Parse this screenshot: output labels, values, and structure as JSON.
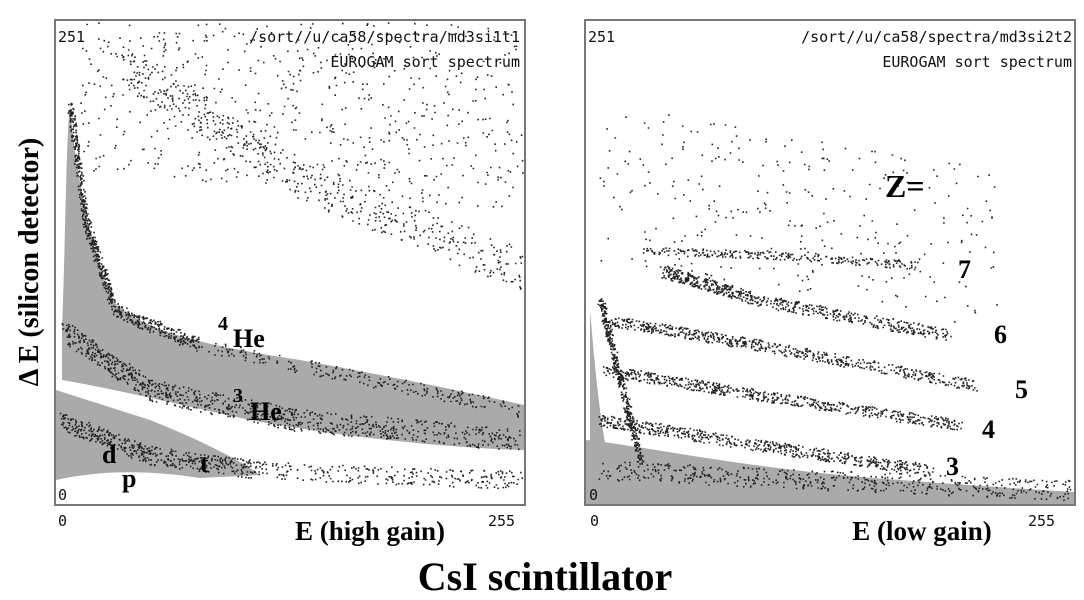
{
  "y_label": "Δ E (silicon detector)",
  "footer": "CsI scintillator",
  "panels": [
    {
      "top_left": "251",
      "path": "/sort//u/ca58/spectra/md3si1t1",
      "subtitle": "EUROGAM sort spectrum",
      "origin": "0",
      "x_start": "0",
      "x_label": "E (high gain)",
      "x_end": "255",
      "annotations": [
        {
          "mass": "4",
          "label": "He"
        },
        {
          "mass": "3",
          "label": "He"
        },
        {
          "label": "d"
        },
        {
          "label": "p"
        },
        {
          "label": "t"
        }
      ]
    },
    {
      "top_left": "251",
      "path": "/sort//u/ca58/spectra/md3si2t2",
      "subtitle": "EUROGAM sort spectrum",
      "origin": "0",
      "x_start": "0",
      "x_label": "E (low gain)",
      "x_end": "255",
      "annotations": [
        {
          "label": "Z="
        },
        {
          "label": "7"
        },
        {
          "label": "6"
        },
        {
          "label": "5"
        },
        {
          "label": "4"
        },
        {
          "label": "3"
        }
      ]
    }
  ]
}
